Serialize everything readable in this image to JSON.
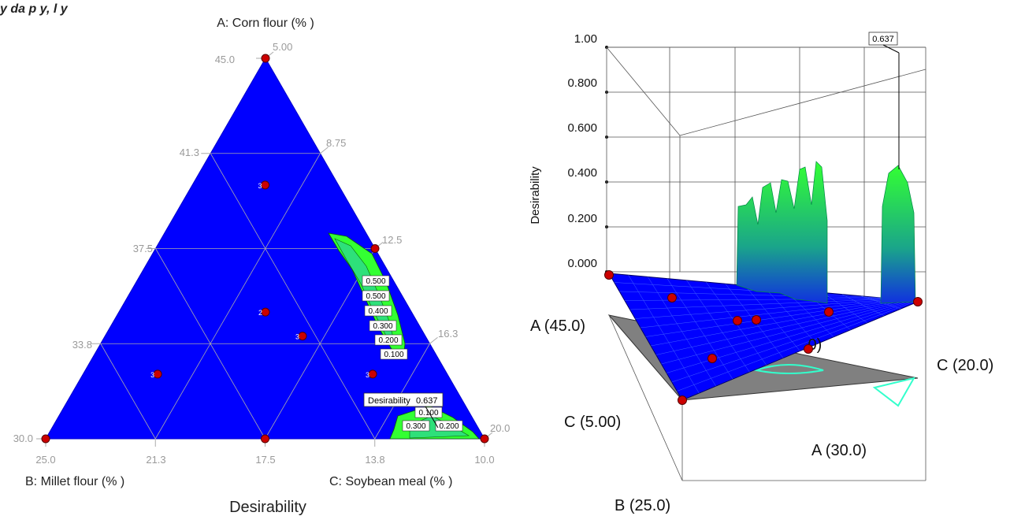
{
  "header_fragment": "y  da                 p      y,        l                         y",
  "chart_data": [
    {
      "type": "ternary-contour",
      "title": "Desirability",
      "vertices": [
        {
          "label": "A: Corn flour (% )",
          "value_left": "45.0",
          "value_right": "5.00"
        },
        {
          "label": "B: Millet flour (% )",
          "value_left": "30.0",
          "value_bottom": "25.0"
        },
        {
          "label": "C: Soybean meal (% )",
          "value_bottom": "10.0",
          "value_right": "20.0"
        }
      ],
      "a_left_ticks": [
        {
          "label": "45.0",
          "frac": 0.0
        },
        {
          "label": "41.3",
          "frac": 0.25
        },
        {
          "label": "37.5",
          "frac": 0.5
        },
        {
          "label": "33.8",
          "frac": 0.75
        },
        {
          "label": "30.0",
          "frac": 1.0
        }
      ],
      "c_right_ticks": [
        {
          "label": "5.00",
          "frac": 0.0
        },
        {
          "label": "8.75",
          "frac": 0.25
        },
        {
          "label": "12.5",
          "frac": 0.5
        },
        {
          "label": "16.3",
          "frac": 0.75
        },
        {
          "label": "20.0",
          "frac": 1.0
        }
      ],
      "b_bottom_ticks": [
        {
          "label": "25.0",
          "frac": 0.0
        },
        {
          "label": "21.3",
          "frac": 0.25
        },
        {
          "label": "17.5",
          "frac": 0.5
        },
        {
          "label": "13.8",
          "frac": 0.75
        },
        {
          "label": "10.0",
          "frac": 1.0
        }
      ],
      "design_points": [
        {
          "a": 1.0,
          "b": 0.0,
          "c": 0.0,
          "rep": ""
        },
        {
          "a": 0.0,
          "b": 1.0,
          "c": 0.0,
          "rep": ""
        },
        {
          "a": 0.0,
          "b": 0.0,
          "c": 1.0,
          "rep": ""
        },
        {
          "a": 0.5,
          "b": 0.0,
          "c": 0.5,
          "rep": ""
        },
        {
          "a": 0.0,
          "b": 0.5,
          "c": 0.5,
          "rep": ""
        },
        {
          "a": 0.667,
          "b": 0.167,
          "c": 0.166,
          "rep": "3"
        },
        {
          "a": 0.333,
          "b": 0.333,
          "c": 0.334,
          "rep": "2"
        },
        {
          "a": 0.27,
          "b": 0.28,
          "c": 0.45,
          "rep": "3"
        },
        {
          "a": 0.17,
          "b": 0.66,
          "c": 0.17,
          "rep": "3"
        },
        {
          "a": 0.17,
          "b": 0.17,
          "c": 0.66,
          "rep": "3"
        }
      ],
      "contour_labels": [
        "0.500",
        "0.500",
        "0.400",
        "0.300",
        "0.200",
        "0.100",
        "0.100",
        "0.300",
        "0.200"
      ],
      "prediction": {
        "label": "Desirability",
        "value": "0.637"
      },
      "colors": {
        "background": "#0000ff",
        "contour_hi": "#33ff33",
        "contour_mid": "#2ee07a",
        "point": "#cc0000"
      }
    },
    {
      "type": "surface-3d",
      "zlabel": "Desirability",
      "z_ticks": [
        "1.00",
        "0.800",
        "0.600",
        "0.400",
        "0.200",
        "0.000"
      ],
      "zlim": [
        0,
        1
      ],
      "peak_value": "0.637",
      "axis_labels": [
        "A (45.0)",
        "C (20.0)",
        "C (5.00)",
        "A (30.0)",
        "B (25.0)"
      ],
      "hidden_label": ".0)",
      "colors": {
        "surface": "#0000ff",
        "peak": "#33ff33",
        "floor": "#808080",
        "point": "#cc0000"
      }
    }
  ]
}
